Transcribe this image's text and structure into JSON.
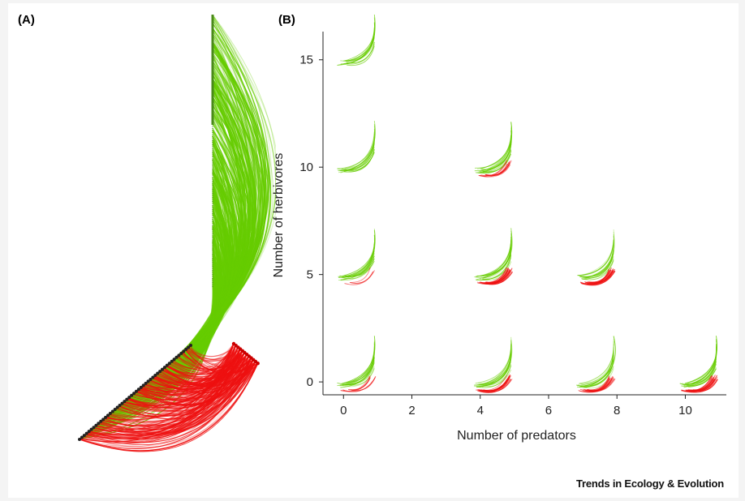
{
  "panels": {
    "a_label": "(A)",
    "b_label": "(B)"
  },
  "journal": "Trends in Ecology & Evolution",
  "colors": {
    "herbivore_links": "#66cc00",
    "predator_links": "#ee1111",
    "nodes": "#222222",
    "plant_axis": "#4a8a1a"
  },
  "chart_data": [
    {
      "type": "network-arc",
      "panel": "(A)",
      "description_note": "",
      "link_groups": [
        "herbivore-plant",
        "predator-herbivore"
      ]
    },
    {
      "type": "scatter",
      "panel": "(B)",
      "xlabel": "Number of predators",
      "ylabel": "Number of herbivores",
      "xlim": [
        -0.6,
        11.2
      ],
      "ylim": [
        -0.6,
        16.5
      ],
      "xticks": [
        0,
        2,
        4,
        6,
        8,
        10
      ],
      "yticks": [
        0,
        5,
        10,
        15
      ],
      "grid": false,
      "points": [
        {
          "x": 0,
          "y": 15,
          "red": 0
        },
        {
          "x": 0,
          "y": 10,
          "red": 0
        },
        {
          "x": 0,
          "y": 5,
          "red": 1
        },
        {
          "x": 0,
          "y": 0,
          "red": 2
        },
        {
          "x": 4,
          "y": 10,
          "red": 3
        },
        {
          "x": 4,
          "y": 5,
          "red": 6
        },
        {
          "x": 4,
          "y": 0,
          "red": 5
        },
        {
          "x": 7,
          "y": 5,
          "red": 6
        },
        {
          "x": 7,
          "y": 0,
          "red": 6
        },
        {
          "x": 10,
          "y": 0,
          "red": 7
        }
      ]
    }
  ]
}
